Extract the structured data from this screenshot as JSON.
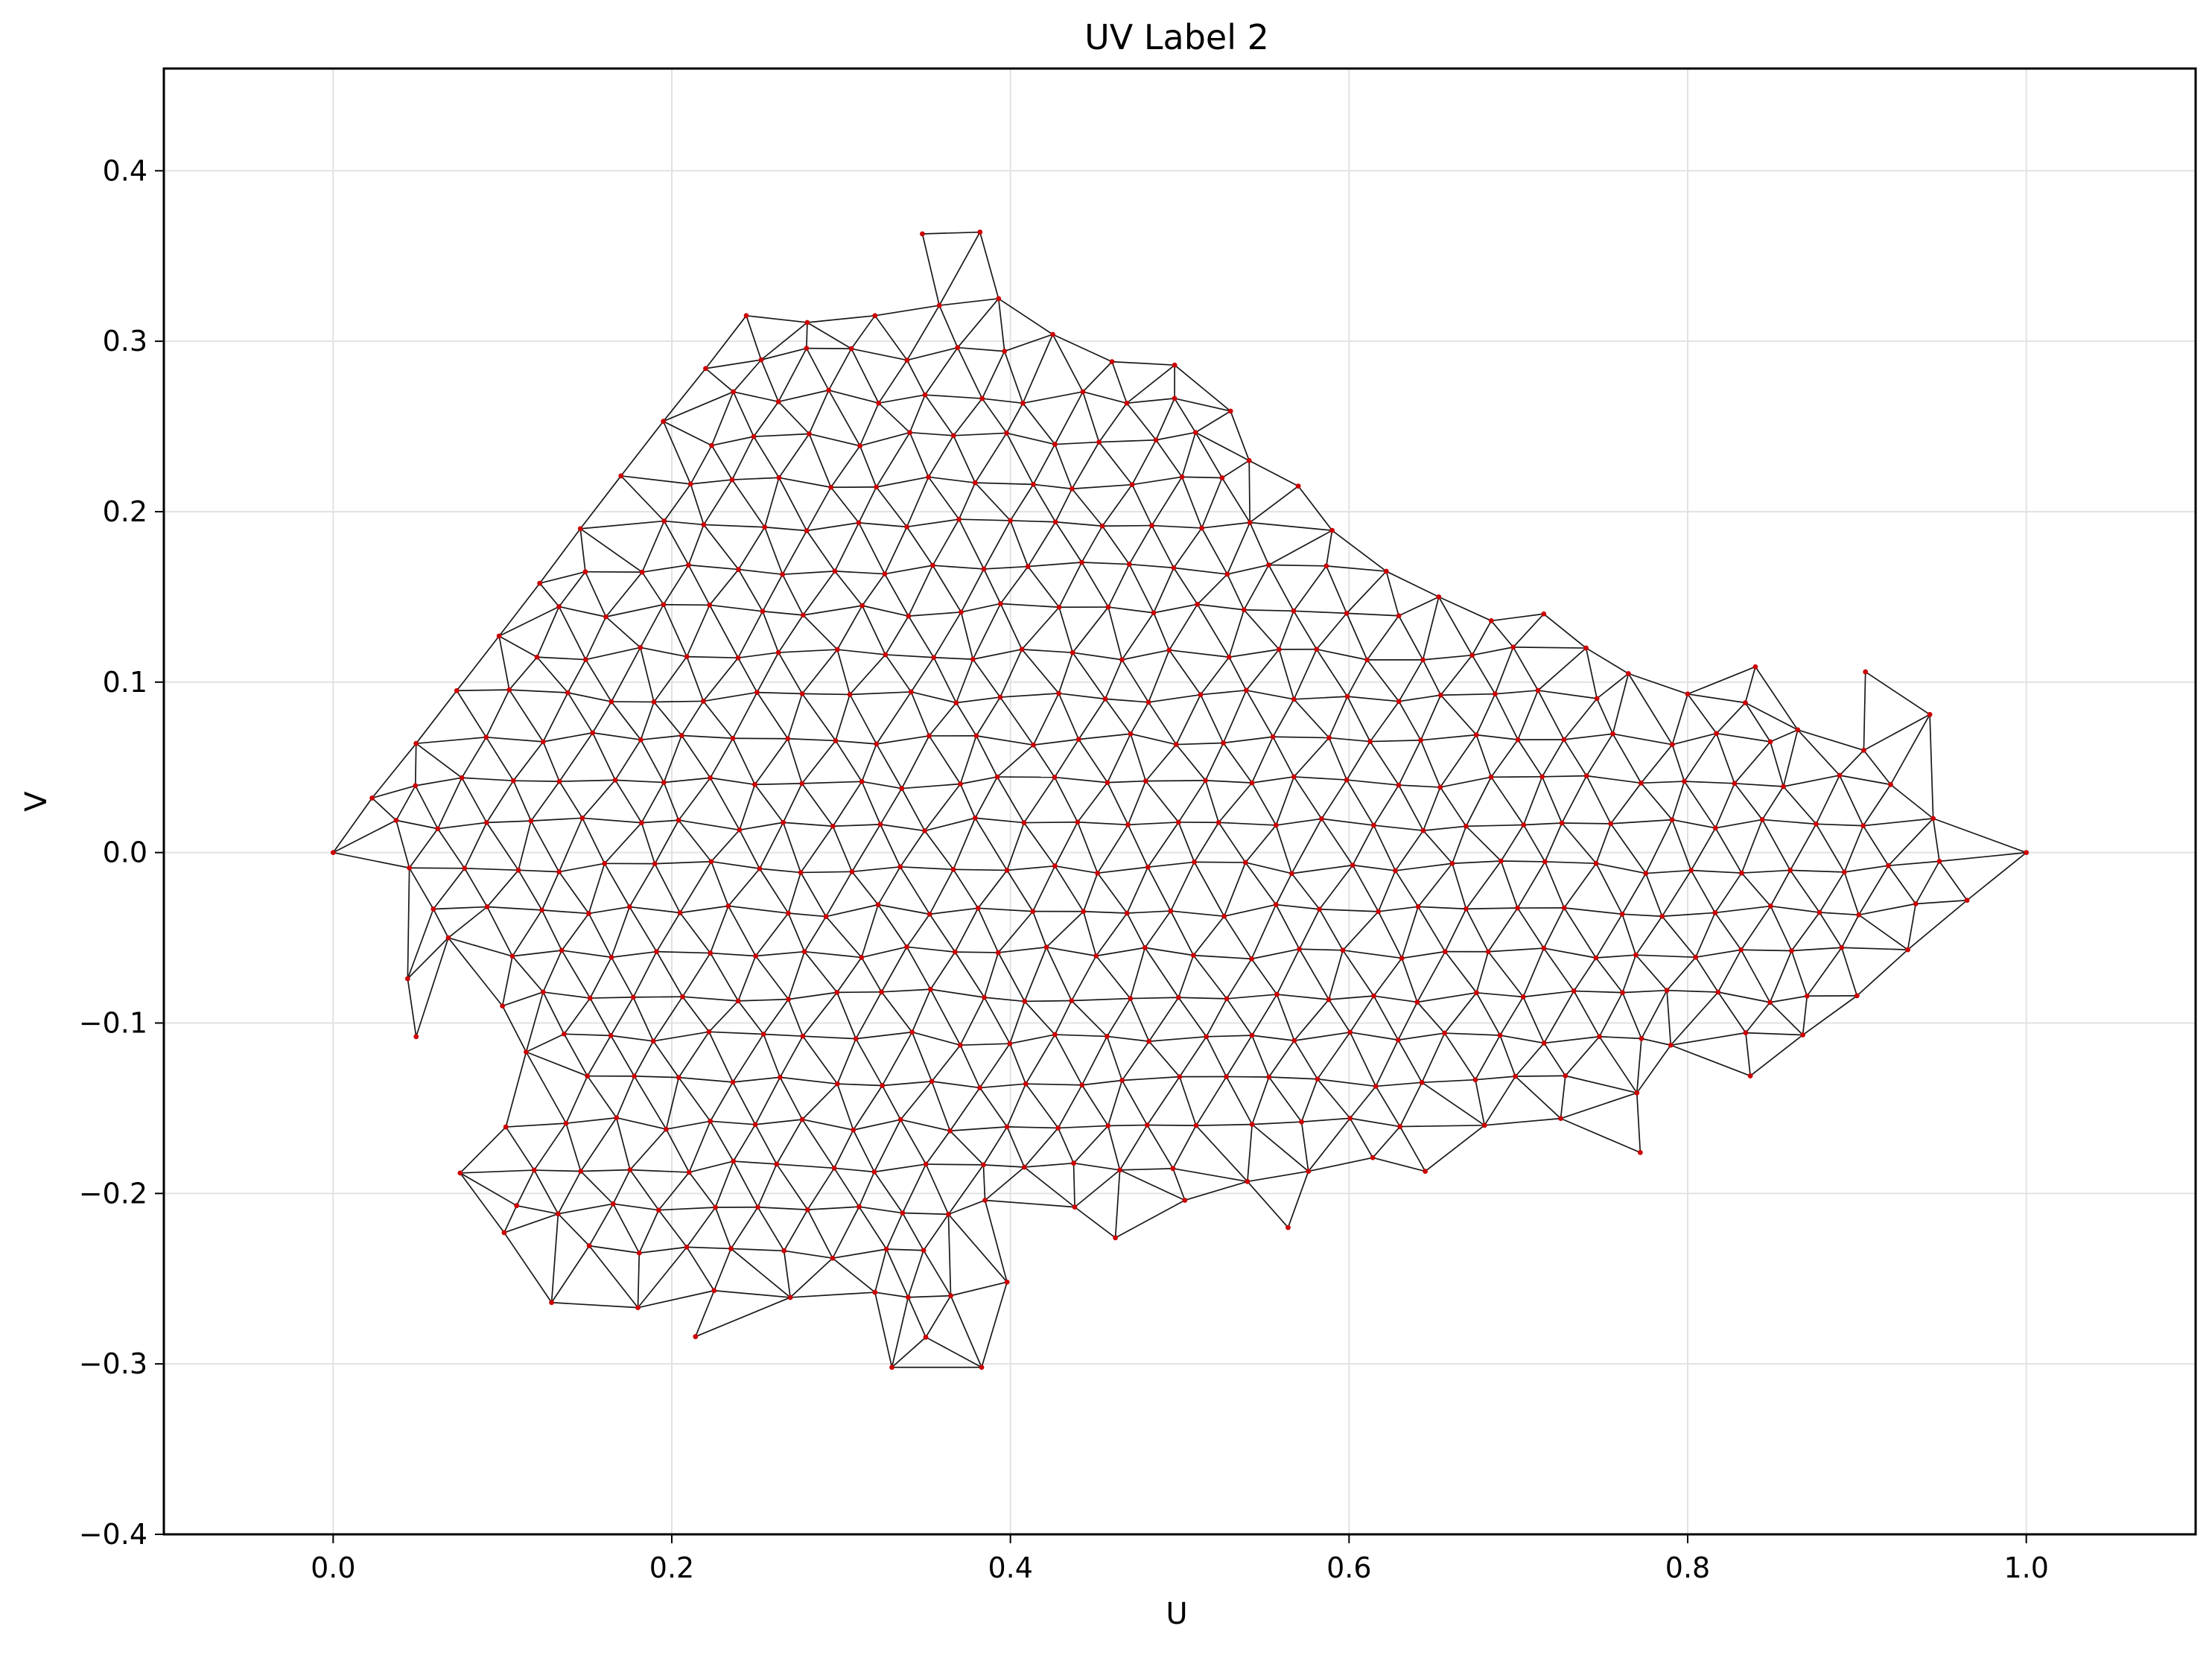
{
  "chart_data": {
    "type": "scatter",
    "title": "UV Label 2",
    "xlabel": "U",
    "ylabel": "V",
    "xlim": [
      -0.1,
      1.1
    ],
    "ylim": [
      -0.4,
      0.46
    ],
    "xticks": [
      0.0,
      0.2,
      0.4,
      0.6,
      0.8,
      1.0
    ],
    "xtick_labels": [
      "0.0",
      "0.2",
      "0.4",
      "0.6",
      "0.8",
      "1.0"
    ],
    "yticks": [
      -0.4,
      -0.3,
      -0.2,
      -0.1,
      0.0,
      0.1,
      0.2,
      0.3,
      0.4
    ],
    "ytick_labels": [
      "−0.4",
      "−0.3",
      "−0.2",
      "−0.1",
      "0.0",
      "0.1",
      "0.2",
      "0.3",
      "0.4"
    ],
    "grid": true,
    "legend": "none",
    "mesh": "triangulated UV layout; every vertex drawn as a red point, every triangle edge drawn as a thin black line",
    "colors": {
      "edges": "#000000",
      "vertices": "#cc0000",
      "grid": "#e2e2e2",
      "frame": "#000000"
    },
    "boundary": [
      [
        0.0,
        0.0
      ],
      [
        0.023,
        0.032
      ],
      [
        0.049,
        0.064
      ],
      [
        0.073,
        0.095
      ],
      [
        0.098,
        0.127
      ],
      [
        0.122,
        0.158
      ],
      [
        0.146,
        0.19
      ],
      [
        0.17,
        0.221
      ],
      [
        0.195,
        0.253
      ],
      [
        0.22,
        0.284
      ],
      [
        0.244,
        0.315
      ],
      [
        0.28,
        0.311
      ],
      [
        0.32,
        0.315
      ],
      [
        0.358,
        0.321
      ],
      [
        0.348,
        0.363
      ],
      [
        0.382,
        0.364
      ],
      [
        0.393,
        0.325
      ],
      [
        0.425,
        0.304
      ],
      [
        0.46,
        0.288
      ],
      [
        0.497,
        0.286
      ],
      [
        0.53,
        0.259
      ],
      [
        0.541,
        0.23
      ],
      [
        0.57,
        0.215
      ],
      [
        0.59,
        0.189
      ],
      [
        0.622,
        0.165
      ],
      [
        0.653,
        0.15
      ],
      [
        0.684,
        0.136
      ],
      [
        0.715,
        0.14
      ],
      [
        0.74,
        0.12
      ],
      [
        0.765,
        0.105
      ],
      [
        0.8,
        0.093
      ],
      [
        0.84,
        0.109
      ],
      [
        0.865,
        0.072
      ],
      [
        0.904,
        0.06
      ],
      [
        0.905,
        0.106
      ],
      [
        0.943,
        0.081
      ],
      [
        0.945,
        0.02
      ],
      [
        1.0,
        0.0
      ],
      [
        0.965,
        -0.028
      ],
      [
        0.93,
        -0.057
      ],
      [
        0.9,
        -0.084
      ],
      [
        0.868,
        -0.107
      ],
      [
        0.837,
        -0.131
      ],
      [
        0.79,
        -0.113
      ],
      [
        0.77,
        -0.141
      ],
      [
        0.772,
        -0.176
      ],
      [
        0.725,
        -0.156
      ],
      [
        0.68,
        -0.16
      ],
      [
        0.645,
        -0.187
      ],
      [
        0.614,
        -0.179
      ],
      [
        0.576,
        -0.187
      ],
      [
        0.564,
        -0.22
      ],
      [
        0.54,
        -0.193
      ],
      [
        0.503,
        -0.204
      ],
      [
        0.462,
        -0.226
      ],
      [
        0.438,
        -0.208
      ],
      [
        0.385,
        -0.204
      ],
      [
        0.398,
        -0.252
      ],
      [
        0.383,
        -0.302
      ],
      [
        0.33,
        -0.302
      ],
      [
        0.32,
        -0.258
      ],
      [
        0.27,
        -0.261
      ],
      [
        0.214,
        -0.284
      ],
      [
        0.225,
        -0.257
      ],
      [
        0.18,
        -0.267
      ],
      [
        0.129,
        -0.264
      ],
      [
        0.101,
        -0.223
      ],
      [
        0.075,
        -0.188
      ],
      [
        0.102,
        -0.161
      ],
      [
        0.114,
        -0.117
      ],
      [
        0.1,
        -0.09
      ],
      [
        0.068,
        -0.05
      ],
      [
        0.049,
        -0.108
      ],
      [
        0.044,
        -0.074
      ],
      [
        0.045,
        -0.009
      ]
    ]
  }
}
